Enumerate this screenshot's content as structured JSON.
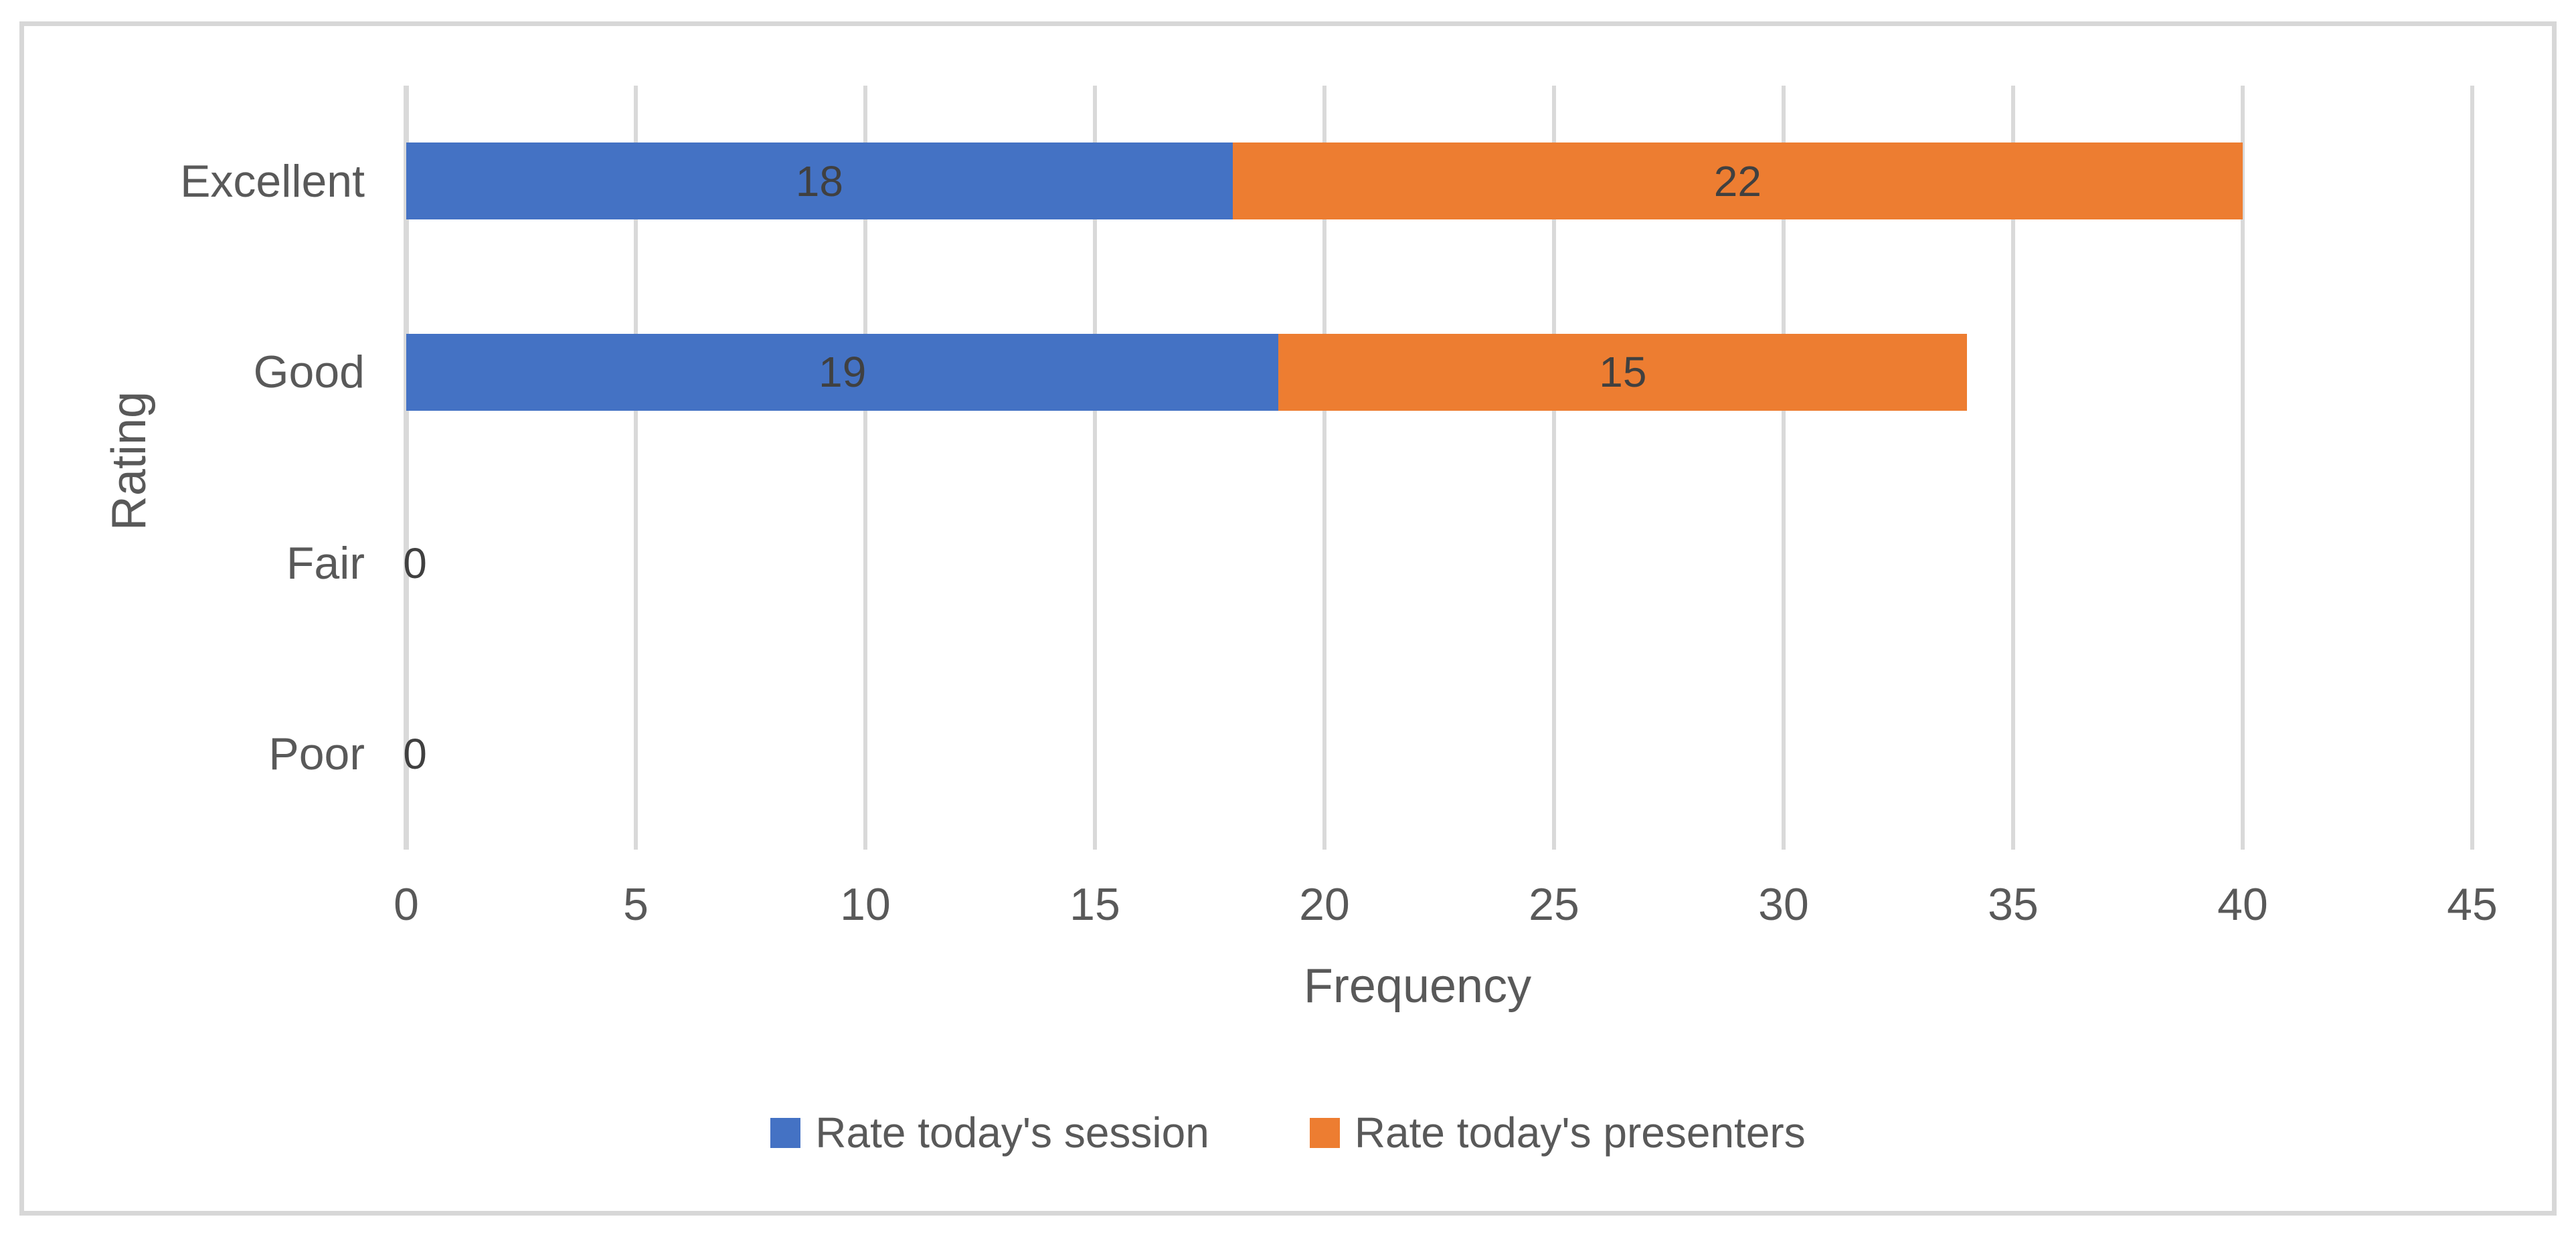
{
  "chart_data": {
    "type": "bar",
    "orientation": "horizontal",
    "stacked": true,
    "title": "",
    "categories": [
      "Excellent",
      "Good",
      "Fair",
      "Poor"
    ],
    "series": [
      {
        "name": "Rate today's session",
        "color": "#4472C4",
        "values": [
          18,
          19,
          0,
          0
        ]
      },
      {
        "name": "Rate today's presenters",
        "color": "#ED7D31",
        "values": [
          22,
          15,
          0,
          0
        ]
      }
    ],
    "data_labels": {
      "shown": true,
      "values_by_row": [
        [
          "18",
          "22"
        ],
        [
          "19",
          "15"
        ],
        [
          "0"
        ],
        [
          "0"
        ]
      ],
      "zero_label": "0",
      "color": "#404040"
    },
    "xlabel": "Frequency",
    "ylabel": "Rating",
    "xlim": [
      0,
      45
    ],
    "x_axis": {
      "ticks": [
        0,
        5,
        10,
        15,
        20,
        25,
        30,
        35,
        40,
        45
      ],
      "tick_step": 5
    },
    "grid": "vertical-only",
    "legend_position": "bottom",
    "legend": [
      {
        "label": "Rate today's session",
        "color": "#4472C4"
      },
      {
        "label": "Rate today's presenters",
        "color": "#ED7D31"
      }
    ],
    "colors": {
      "text": "#595959",
      "data_label": "#404040",
      "gridline": "#D9D9D9",
      "frame_border": "#D7D7D7",
      "background": "#FFFFFF"
    }
  }
}
